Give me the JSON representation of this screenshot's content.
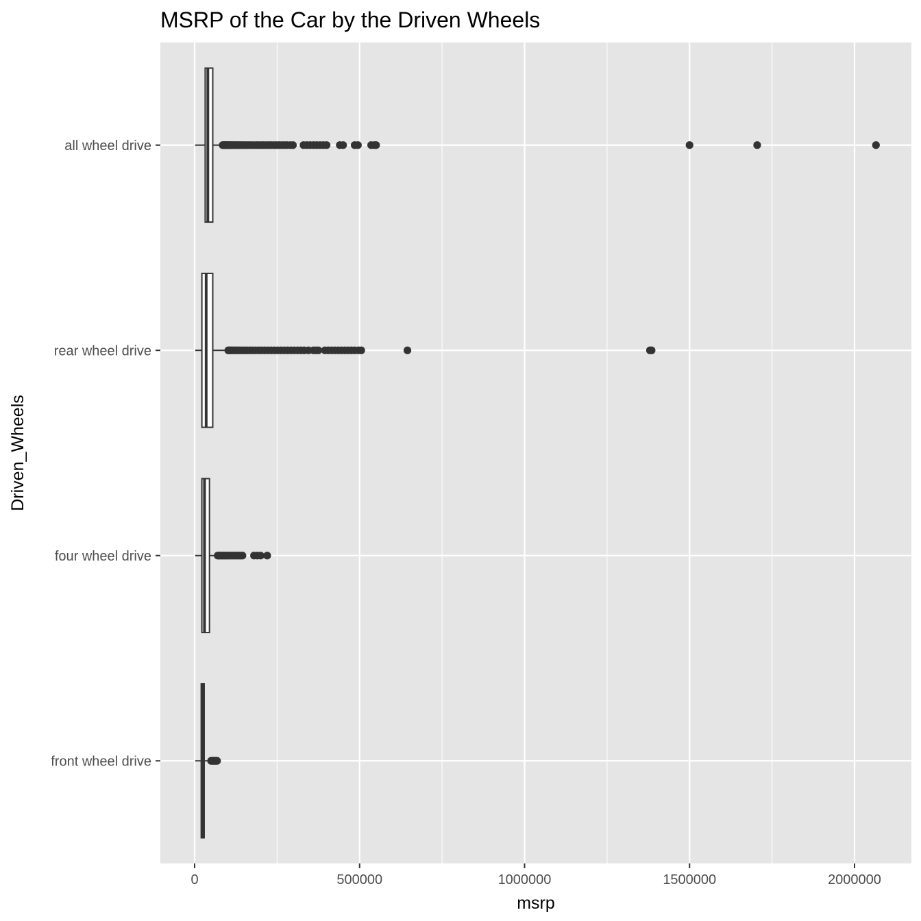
{
  "chart_data": {
    "type": "boxplot",
    "title": "MSRP of the Car by the Driven Wheels",
    "xlabel": "msrp",
    "ylabel": "Driven_Wheels",
    "xlim": [
      -100000,
      2160000
    ],
    "x_ticks": [
      0,
      500000,
      1000000,
      1500000,
      2000000
    ],
    "x_tick_labels": [
      "0",
      "500000",
      "1000000",
      "1500000",
      "2000000"
    ],
    "grid": true,
    "legend": "none",
    "colors": {
      "panel_bg": "#e5e5e5",
      "grid": "#ffffff",
      "box_fill": "#ffffff",
      "box_line": "#333333",
      "outlier": "#333333"
    },
    "categories": [
      "all wheel drive",
      "rear wheel drive",
      "four wheel drive",
      "front wheel drive"
    ],
    "boxes": [
      {
        "category": "all wheel drive",
        "whisker_low": 2000,
        "q1": 32000,
        "median": 40000,
        "q3": 55000,
        "whisker_high": 82000,
        "outliers": [
          85000,
          88000,
          90000,
          93000,
          96000,
          99000,
          102000,
          105000,
          108000,
          112000,
          116000,
          120000,
          125000,
          130000,
          135000,
          140000,
          146000,
          152000,
          158000,
          165000,
          172000,
          180000,
          188000,
          195000,
          203000,
          210000,
          218000,
          225000,
          232000,
          240000,
          248000,
          256000,
          264000,
          272000,
          280000,
          290000,
          298000,
          330000,
          340000,
          350000,
          360000,
          370000,
          380000,
          390000,
          400000,
          440000,
          450000,
          485000,
          495000,
          535000,
          545000,
          550000,
          1500000,
          1705000,
          2065000
        ]
      },
      {
        "category": "rear wheel drive",
        "whisker_low": 2000,
        "q1": 22000,
        "median": 35000,
        "q3": 55000,
        "whisker_high": 100000,
        "outliers": [
          102000,
          106000,
          110000,
          115000,
          120000,
          126000,
          132000,
          138000,
          145000,
          152000,
          160000,
          168000,
          176000,
          185000,
          194000,
          203000,
          212000,
          222000,
          232000,
          242000,
          252000,
          262000,
          272000,
          282000,
          292000,
          302000,
          312000,
          322000,
          332000,
          345000,
          360000,
          368000,
          375000,
          395000,
          405000,
          415000,
          425000,
          435000,
          445000,
          455000,
          465000,
          475000,
          485000,
          497000,
          505000,
          645000,
          1380000,
          1385000
        ]
      },
      {
        "category": "four wheel drive",
        "whisker_low": 2000,
        "q1": 22000,
        "median": 30000,
        "q3": 45000,
        "whisker_high": 68000,
        "outliers": [
          70000,
          73000,
          76000,
          80000,
          84000,
          88000,
          92000,
          96000,
          100000,
          105000,
          110000,
          115000,
          120000,
          125000,
          130000,
          135000,
          140000,
          145000,
          180000,
          190000,
          200000,
          220000
        ]
      },
      {
        "category": "front wheel drive",
        "whisker_low": 2000,
        "q1": 20000,
        "median": 24000,
        "q3": 29000,
        "whisker_high": 48000,
        "outliers": [
          50000,
          53000,
          56000,
          59000,
          62000,
          65000,
          68000
        ]
      }
    ]
  }
}
